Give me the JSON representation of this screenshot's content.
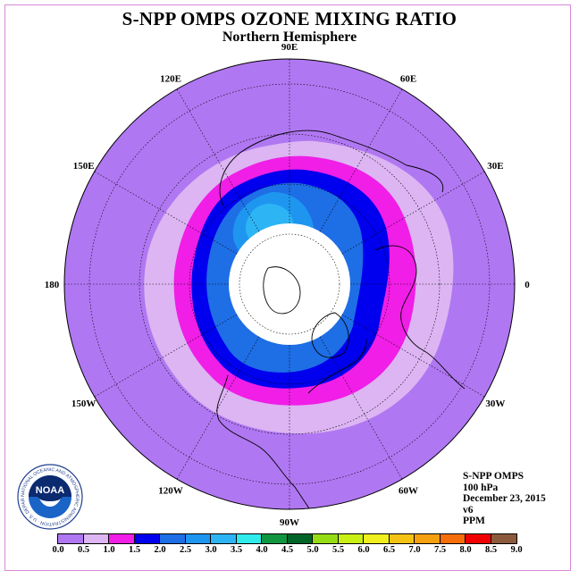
{
  "title": "S-NPP OMPS OZONE MIXING RATIO",
  "subtitle": "Northern Hemisphere",
  "longitude_labels": [
    "90E",
    "60E",
    "30E",
    "0",
    "30W",
    "60W",
    "90W",
    "120W",
    "150W",
    "180",
    "150E",
    "120E"
  ],
  "info": {
    "instrument": "S-NPP OMPS",
    "level": "100 hPa",
    "date": "December 23, 2015",
    "version": "v6",
    "units": "PPM"
  },
  "logo": {
    "text": "NOAA",
    "ring_text": "NATIONAL OCEANIC AND ATMOSPHERIC ADMINISTRATION · U.S. DEPARTMENT OF COMMERCE"
  },
  "colorbar": {
    "labels": [
      "0.0",
      "0.5",
      "1.0",
      "1.5",
      "2.0",
      "2.5",
      "3.0",
      "3.5",
      "4.0",
      "4.5",
      "5.0",
      "5.5",
      "6.0",
      "6.5",
      "7.0",
      "7.5",
      "8.0",
      "8.5",
      "9.0"
    ],
    "colors": [
      "#b077f2",
      "#dcb5f2",
      "#f01ee6",
      "#0000ee",
      "#1e6ee6",
      "#1e96f0",
      "#2db4f5",
      "#30ebeb",
      "#109640",
      "#006428",
      "#96dc14",
      "#c8f014",
      "#f0f01e",
      "#f5c314",
      "#f5a00f",
      "#f56e0a",
      "#f00000",
      "#8b5a3c"
    ]
  },
  "map_colors": {
    "background": "#b077f2",
    "no_data": "#ffffff"
  }
}
